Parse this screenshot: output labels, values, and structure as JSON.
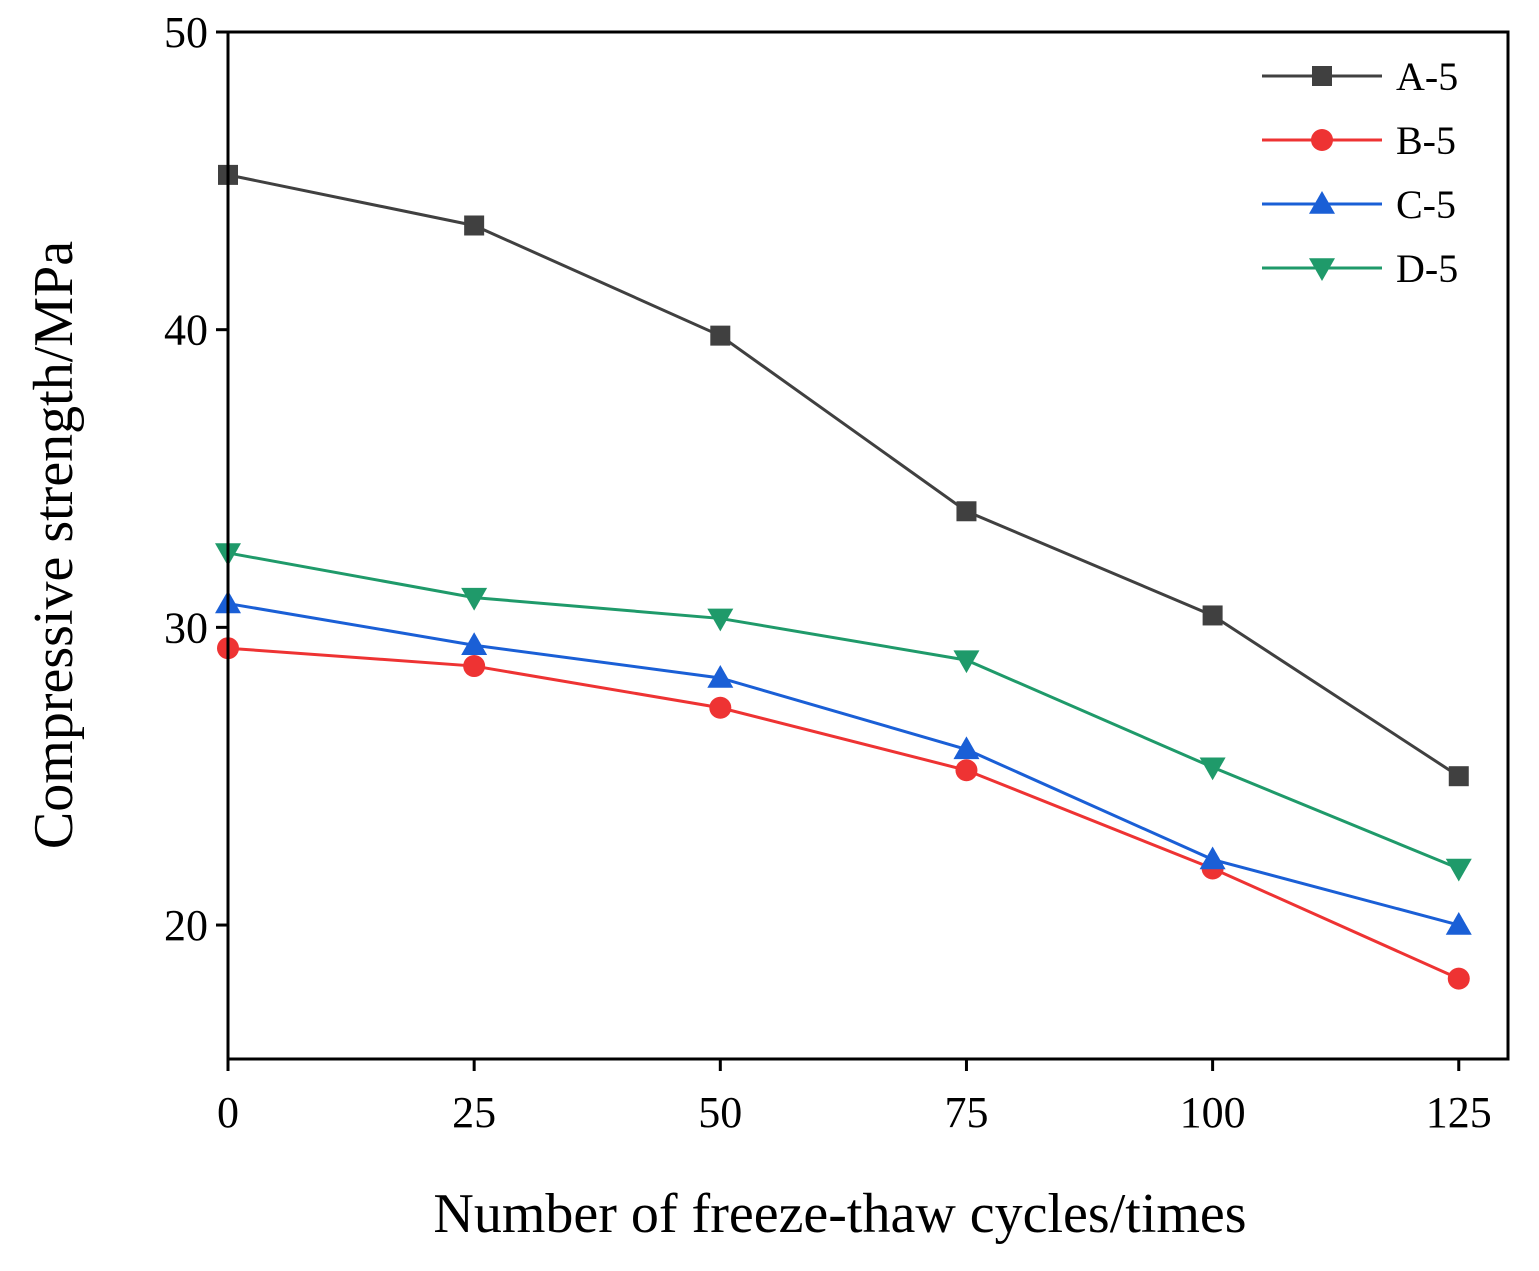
{
  "chart_data": {
    "type": "line",
    "title": "",
    "xlabel": "Number of freeze-thaw cycles/times",
    "ylabel": "Compressive strength/MPa",
    "x": [
      0,
      25,
      50,
      75,
      100,
      125
    ],
    "xlim": [
      0,
      130
    ],
    "ylim": [
      15.5,
      50
    ],
    "xticks": [
      "0",
      "25",
      "50",
      "75",
      "100",
      "125"
    ],
    "yticks": [
      "20",
      "30",
      "40",
      "50"
    ],
    "ytick_values": [
      20,
      30,
      40,
      50
    ],
    "grid": false,
    "legend_position": "top-right",
    "series": [
      {
        "name": "A-5",
        "color": "#404040",
        "marker": "square",
        "values": [
          45.2,
          43.5,
          39.8,
          33.9,
          30.4,
          25.0
        ]
      },
      {
        "name": "B-5",
        "color": "#ee3333",
        "marker": "circle",
        "values": [
          29.3,
          28.7,
          27.3,
          25.2,
          21.9,
          18.2
        ]
      },
      {
        "name": "C-5",
        "color": "#1a5fd6",
        "marker": "triangle-up",
        "values": [
          30.8,
          29.4,
          28.3,
          25.9,
          22.2,
          20.0
        ]
      },
      {
        "name": "D-5",
        "color": "#1f9a6a",
        "marker": "triangle-down",
        "values": [
          32.5,
          31.0,
          30.3,
          28.9,
          25.3,
          21.9
        ]
      }
    ]
  }
}
